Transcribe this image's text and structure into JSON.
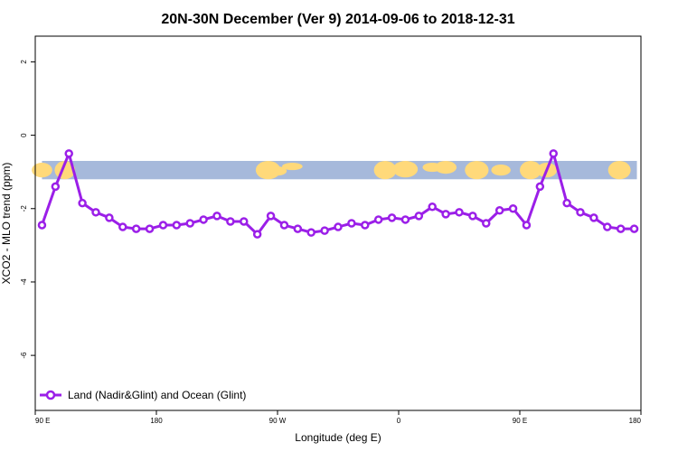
{
  "chart_data": {
    "type": "line",
    "title": "20N-30N December (Ver 9)   2014-09-06 to 2018-12-31",
    "xlabel": "Longitude (deg E)",
    "ylabel": "XCO2 - MLO trend (ppm)",
    "x_ticks": [
      {
        "value": 90,
        "label": "90 E"
      },
      {
        "value": 180,
        "label": "180"
      },
      {
        "value": 270,
        "label": "90 W"
      },
      {
        "value": 360,
        "label": "0"
      },
      {
        "value": 450,
        "label": "90 E"
      },
      {
        "value": 540,
        "label": "180"
      }
    ],
    "y_ticks": [
      {
        "value": 2,
        "label": "2"
      },
      {
        "value": 0,
        "label": "0"
      },
      {
        "value": -2,
        "label": "-2"
      },
      {
        "value": -4,
        "label": "-4"
      },
      {
        "value": -6,
        "label": "-6"
      }
    ],
    "xlim": [
      90,
      540
    ],
    "ylim": [
      -7.5,
      2.7
    ],
    "map_band": {
      "ymin": -1.2,
      "ymax": -0.7,
      "ocean_color": "#A6B9DB",
      "land_color": "#FFD97A"
    },
    "legend_position": "bottom-left",
    "series": [
      {
        "name": "Land (Nadir&Glint) and Ocean (Glint)",
        "color": "#9B1FE8",
        "x": [
          95,
          105,
          115,
          125,
          135,
          145,
          155,
          165,
          175,
          185,
          195,
          205,
          215,
          225,
          235,
          245,
          255,
          265,
          275,
          285,
          295,
          305,
          315,
          325,
          335,
          345,
          355,
          365,
          375,
          385,
          395,
          405,
          415,
          425,
          435,
          445,
          455,
          465,
          475,
          485,
          495,
          505,
          515,
          525,
          535
        ],
        "y": [
          -2.45,
          -1.4,
          -0.5,
          -1.85,
          -2.1,
          -2.25,
          -2.5,
          -2.55,
          -2.55,
          -2.45,
          -2.45,
          -2.4,
          -2.3,
          -2.2,
          -2.35,
          -2.35,
          -2.7,
          -2.2,
          -2.45,
          -2.55,
          -2.65,
          -2.6,
          -2.5,
          -2.4,
          -2.45,
          -2.3,
          -2.25,
          -2.3,
          -2.2,
          -1.95,
          -2.15,
          -2.1,
          -2.2,
          -2.4,
          -2.05,
          -2.0,
          -2.45,
          -1.4,
          -0.5,
          -1.85,
          -2.1,
          -2.25,
          -2.5,
          -2.55,
          -2.55
        ]
      }
    ]
  }
}
